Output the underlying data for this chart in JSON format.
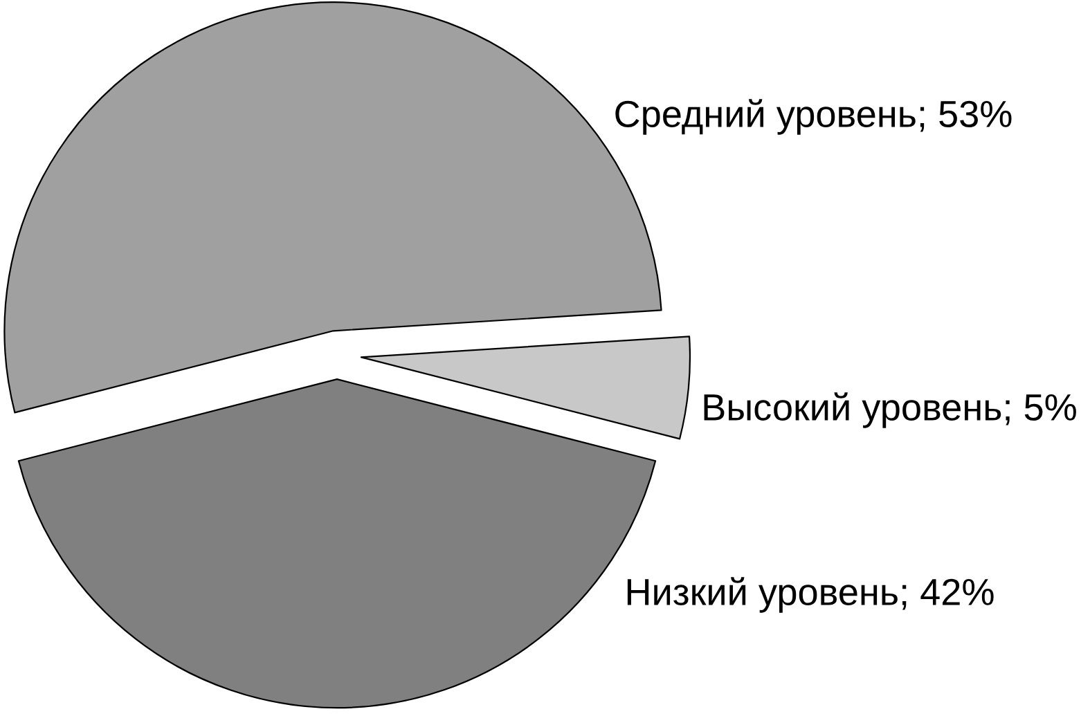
{
  "chart_data": {
    "type": "pie",
    "categories": [
      "Средний уровень",
      "Высокий уровень",
      "Низкий уровень"
    ],
    "values": [
      53,
      5,
      42
    ],
    "colors": [
      "#a0a0a0",
      "#c8c8c8",
      "#808080"
    ],
    "value_labels": [
      "53%",
      "5%",
      "42%"
    ]
  }
}
